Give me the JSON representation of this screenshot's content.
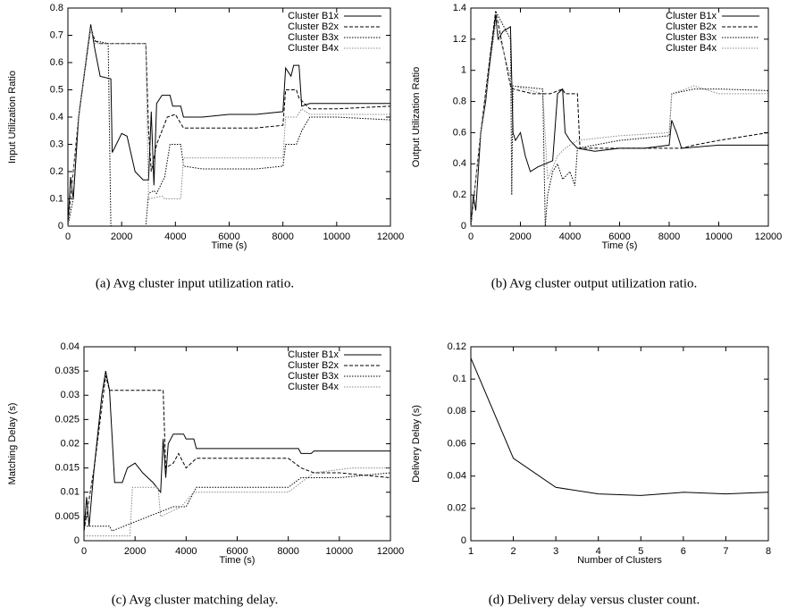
{
  "chart_data": [
    {
      "type": "line",
      "caption": "(a) Avg cluster input utilization ratio.",
      "xlabel": "Time (s)",
      "ylabel": "Input Utilization Ratio",
      "xlim": [
        0,
        12000
      ],
      "ylim": [
        0,
        0.8
      ],
      "xticks": [
        0,
        2000,
        4000,
        6000,
        8000,
        10000,
        12000
      ],
      "yticks": [
        0,
        0.1,
        0.2,
        0.3,
        0.4,
        0.5,
        0.6,
        0.7,
        0.8
      ],
      "legend": "top-right",
      "series": [
        {
          "name": "Cluster B1x",
          "color": "#000000",
          "style": "solid",
          "x": [
            0,
            100,
            200,
            400,
            600,
            850,
            1000,
            1200,
            1600,
            1650,
            1800,
            2000,
            2200,
            2500,
            2800,
            3000,
            3100,
            3200,
            3300,
            3500,
            3800,
            3900,
            4200,
            4300,
            5000,
            6000,
            7000,
            8000,
            8100,
            8300,
            8400,
            8600,
            8700,
            9000,
            10000,
            11000,
            12000
          ],
          "values": [
            0,
            0.18,
            0.1,
            0.4,
            0.55,
            0.74,
            0.65,
            0.55,
            0.54,
            0.27,
            0.3,
            0.34,
            0.33,
            0.2,
            0.17,
            0.17,
            0.42,
            0.15,
            0.45,
            0.48,
            0.48,
            0.44,
            0.44,
            0.4,
            0.4,
            0.41,
            0.41,
            0.42,
            0.58,
            0.55,
            0.59,
            0.59,
            0.44,
            0.45,
            0.45,
            0.45,
            0.45
          ]
        },
        {
          "name": "Cluster B2x",
          "color": "#000000",
          "style": "dashed",
          "x": [
            0,
            400,
            850,
            1000,
            1200,
            2000,
            2900,
            3000,
            3100,
            3300,
            3500,
            3700,
            4000,
            4300,
            5000,
            7000,
            8000,
            8100,
            8500,
            8600,
            9000,
            10000,
            12000
          ],
          "values": [
            0,
            0.4,
            0.73,
            0.68,
            0.67,
            0.67,
            0.67,
            0.35,
            0.2,
            0.3,
            0.35,
            0.4,
            0.41,
            0.36,
            0.36,
            0.36,
            0.37,
            0.5,
            0.5,
            0.47,
            0.43,
            0.43,
            0.44
          ]
        },
        {
          "name": "Cluster B3x",
          "color": "#000000",
          "style": "dotted",
          "x": [
            0,
            200,
            400,
            850,
            1000,
            1500,
            1600,
            2900,
            3000,
            3200,
            3300,
            3600,
            3800,
            4200,
            4300,
            5000,
            7000,
            8000,
            8100,
            8500,
            8700,
            9000,
            10000,
            12000
          ],
          "values": [
            0,
            0.1,
            0.4,
            0.73,
            0.68,
            0.67,
            0,
            0,
            0.12,
            0.13,
            0.12,
            0.18,
            0.3,
            0.3,
            0.22,
            0.21,
            0.21,
            0.22,
            0.3,
            0.3,
            0.35,
            0.4,
            0.4,
            0.39
          ]
        },
        {
          "name": "Cluster B4x",
          "color": "#888888",
          "style": "dotted",
          "x": [
            0,
            400,
            850,
            1000,
            2900,
            3000,
            3500,
            3600,
            4200,
            4300,
            5000,
            8000,
            8100,
            8500,
            8700,
            9000,
            10000,
            12000
          ],
          "values": [
            0,
            0.4,
            0.73,
            0.67,
            0.67,
            0.1,
            0.11,
            0.1,
            0.1,
            0.25,
            0.25,
            0.25,
            0.4,
            0.4,
            0.43,
            0.41,
            0.41,
            0.41
          ]
        }
      ]
    },
    {
      "type": "line",
      "caption": "(b) Avg cluster output utilization ratio.",
      "xlabel": "Time (s)",
      "ylabel": "Output Utilization Ratio",
      "xlim": [
        0,
        12000
      ],
      "ylim": [
        0,
        1.4
      ],
      "xticks": [
        0,
        2000,
        4000,
        6000,
        8000,
        10000,
        12000
      ],
      "yticks": [
        0,
        0.2,
        0.4,
        0.6,
        0.8,
        1,
        1.2,
        1.4
      ],
      "legend": "top-right",
      "series": [
        {
          "name": "Cluster B1x",
          "color": "#000000",
          "style": "solid",
          "x": [
            0,
            100,
            200,
            400,
            600,
            800,
            1000,
            1100,
            1300,
            1600,
            1700,
            1800,
            2000,
            2200,
            2400,
            2700,
            3000,
            3300,
            3500,
            3700,
            3800,
            4000,
            4300,
            5000,
            6000,
            7000,
            8000,
            8100,
            8300,
            8500,
            10000,
            12000
          ],
          "values": [
            0,
            0.2,
            0.1,
            0.6,
            0.8,
            1.1,
            1.35,
            1.2,
            1.25,
            1.28,
            0.6,
            0.55,
            0.6,
            0.45,
            0.35,
            0.38,
            0.4,
            0.42,
            0.85,
            0.88,
            0.6,
            0.55,
            0.5,
            0.48,
            0.5,
            0.5,
            0.52,
            0.68,
            0.6,
            0.5,
            0.52,
            0.52
          ]
        },
        {
          "name": "Cluster B2x",
          "color": "#000000",
          "style": "dashed",
          "x": [
            0,
            400,
            1000,
            1600,
            1700,
            2500,
            3000,
            3200,
            3700,
            3800,
            4300,
            4400,
            6000,
            8000,
            8500,
            9000,
            10000,
            12000
          ],
          "values": [
            0,
            0.6,
            1.38,
            0.9,
            0.88,
            0.85,
            0.85,
            0.85,
            0.88,
            0.85,
            0.85,
            0.5,
            0.5,
            0.5,
            0.5,
            0.52,
            0.55,
            0.6
          ]
        },
        {
          "name": "Cluster B3x",
          "color": "#000000",
          "style": "dotted",
          "x": [
            0,
            400,
            1000,
            1600,
            1650,
            1700,
            2900,
            3000,
            3100,
            3300,
            3500,
            3700,
            4000,
            4200,
            4300,
            6000,
            8000,
            8100,
            9000,
            10000,
            12000
          ],
          "values": [
            0,
            0.6,
            1.38,
            1.2,
            0.2,
            0.9,
            0.88,
            0,
            0.2,
            0.35,
            0.4,
            0.3,
            0.35,
            0.26,
            0.5,
            0.55,
            0.58,
            0.85,
            0.88,
            0.88,
            0.87
          ]
        },
        {
          "name": "Cluster B4x",
          "color": "#888888",
          "style": "dotted",
          "x": [
            0,
            400,
            1000,
            1700,
            2900,
            3100,
            3500,
            3800,
            4300,
            6000,
            8000,
            8100,
            9000,
            10000,
            12000
          ],
          "values": [
            0,
            0.6,
            1.3,
            0.9,
            0.85,
            0.3,
            0.45,
            0.5,
            0.55,
            0.58,
            0.6,
            0.85,
            0.9,
            0.85,
            0.85
          ]
        }
      ]
    },
    {
      "type": "line",
      "caption": "(c) Avg cluster matching delay.",
      "xlabel": "Time (s)",
      "ylabel": "Matching Delay (s)",
      "xlim": [
        0,
        12000
      ],
      "ylim": [
        0,
        0.04
      ],
      "xticks": [
        0,
        2000,
        4000,
        6000,
        8000,
        10000,
        12000
      ],
      "yticks": [
        0,
        0.005,
        0.01,
        0.015,
        0.02,
        0.025,
        0.03,
        0.035,
        0.04
      ],
      "legend": "top-right",
      "series": [
        {
          "name": "Cluster B1x",
          "color": "#000000",
          "style": "solid",
          "x": [
            0,
            100,
            200,
            400,
            700,
            850,
            1000,
            1200,
            1500,
            1700,
            2000,
            2300,
            2700,
            3000,
            3100,
            3200,
            3300,
            3500,
            3900,
            4000,
            4300,
            4400,
            8000,
            8400,
            8500,
            8900,
            9000,
            12000
          ],
          "values": [
            0.002,
            0.009,
            0.003,
            0.015,
            0.03,
            0.035,
            0.031,
            0.012,
            0.012,
            0.015,
            0.016,
            0.014,
            0.012,
            0.01,
            0.021,
            0.013,
            0.02,
            0.022,
            0.022,
            0.021,
            0.021,
            0.019,
            0.019,
            0.019,
            0.018,
            0.018,
            0.0185,
            0.0185
          ]
        },
        {
          "name": "Cluster B2x",
          "color": "#000000",
          "style": "dashed",
          "x": [
            0,
            400,
            850,
            1000,
            3100,
            3200,
            3500,
            3700,
            4000,
            4400,
            8000,
            8500,
            9000,
            10000,
            12000
          ],
          "values": [
            0.002,
            0.015,
            0.034,
            0.031,
            0.031,
            0.015,
            0.016,
            0.018,
            0.015,
            0.017,
            0.017,
            0.015,
            0.014,
            0.014,
            0.013
          ]
        },
        {
          "name": "Cluster B3x",
          "color": "#000000",
          "style": "dotted",
          "x": [
            0,
            1000,
            1100,
            3000,
            3500,
            4000,
            4400,
            8000,
            8500,
            9000,
            10000,
            12000
          ],
          "values": [
            0.003,
            0.003,
            0.002,
            0.006,
            0.007,
            0.007,
            0.011,
            0.011,
            0.013,
            0.013,
            0.013,
            0.014
          ]
        },
        {
          "name": "Cluster B4x",
          "color": "#888888",
          "style": "dotted",
          "x": [
            0,
            1800,
            1900,
            2900,
            3000,
            3800,
            4300,
            8000,
            9000,
            10500,
            12000
          ],
          "values": [
            0.001,
            0.001,
            0.011,
            0.011,
            0.005,
            0.007,
            0.01,
            0.01,
            0.014,
            0.015,
            0.015
          ]
        }
      ]
    },
    {
      "type": "line",
      "caption": "(d) Delivery delay versus cluster count.",
      "xlabel": "Number of Clusters",
      "ylabel": "Delivery Delay (s)",
      "xlim": [
        1,
        8
      ],
      "ylim": [
        0,
        0.12
      ],
      "xticks": [
        1,
        2,
        3,
        4,
        5,
        6,
        7,
        8
      ],
      "yticks": [
        0,
        0.02,
        0.04,
        0.06,
        0.08,
        0.1,
        0.12
      ],
      "series": [
        {
          "color": "#000000",
          "style": "solid",
          "x": [
            1,
            2,
            3,
            4,
            5,
            6,
            7,
            8
          ],
          "values": [
            0.113,
            0.051,
            0.033,
            0.029,
            0.028,
            0.03,
            0.029,
            0.03
          ]
        }
      ]
    }
  ]
}
